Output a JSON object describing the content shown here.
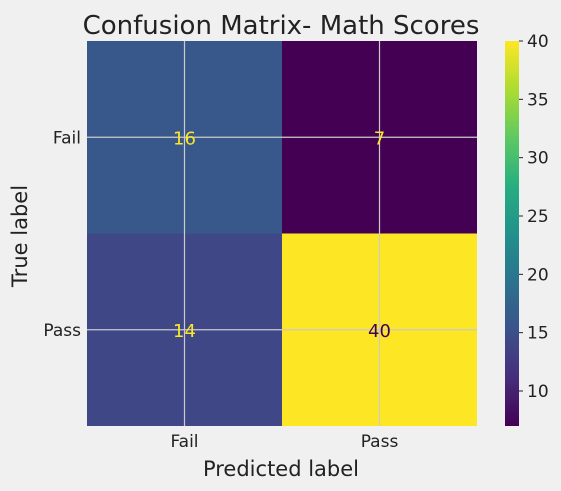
{
  "chart_data": {
    "type": "heatmap",
    "title": "Confusion Matrix- Math Scores",
    "xlabel": "Predicted label",
    "ylabel": "True label",
    "x_categories": [
      "Fail",
      "Pass"
    ],
    "y_categories": [
      "Fail",
      "Pass"
    ],
    "values": [
      [
        16,
        7
      ],
      [
        14,
        40
      ]
    ],
    "colormap": "viridis",
    "colorbar": {
      "min": 7,
      "max": 40,
      "ticks": [
        10,
        15,
        20,
        25,
        30,
        35,
        40
      ]
    },
    "grid": true,
    "colors": {
      "background": "#f0f0f0",
      "grid": "#cbcbcb",
      "text_on_dark": "#fde725",
      "text_on_light": "#440154"
    }
  }
}
